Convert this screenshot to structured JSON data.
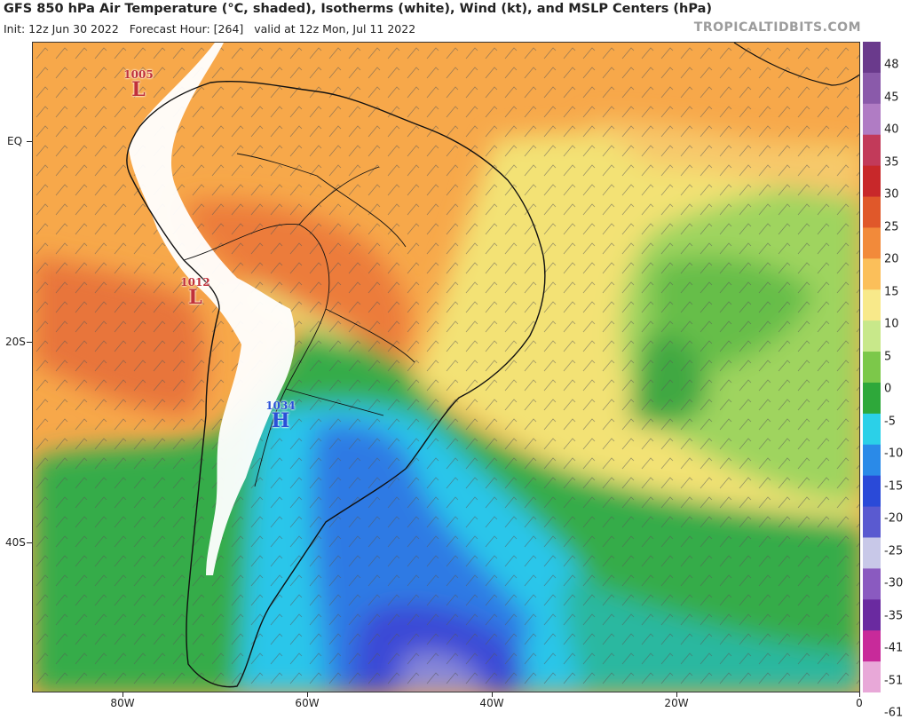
{
  "header": {
    "title": "GFS 850 hPa Air Temperature (°C, shaded), Isotherms (white), Wind (kt), and MSLP Centers (hPa)",
    "init": "Init: 12z Jun 30 2022",
    "forecast_hour": "Forecast Hour: [264]",
    "valid": "valid at 12z Mon, Jul 11 2022",
    "brand": "TROPICALTIDBITS.COM"
  },
  "colorbar": {
    "labels": [
      "48",
      "45",
      "40",
      "35",
      "30",
      "25",
      "20",
      "15",
      "10",
      "5",
      "0",
      "-5",
      "-10",
      "-15",
      "-20",
      "-25",
      "-30",
      "-35",
      "-41",
      "-51",
      "-61"
    ],
    "colors": [
      "#6a3a8c",
      "#8a5aaa",
      "#b07cc4",
      "#c23a5a",
      "#c8282a",
      "#e0582a",
      "#f28a3a",
      "#fbbf5a",
      "#f8e98a",
      "#c8e88a",
      "#7cc84a",
      "#2ea83a",
      "#2bd0e8",
      "#2a8ae8",
      "#2a4ad8",
      "#5a5ad0",
      "#c8c8e8",
      "#8a5ac0",
      "#6a2aa0",
      "#c82a9a",
      "#e8a8d8"
    ]
  },
  "axes": {
    "lat_labels": [
      "EQ",
      "20S",
      "40S"
    ],
    "lon_labels": [
      "80W",
      "60W",
      "40W",
      "20W",
      "0"
    ]
  },
  "pressure_centers": [
    {
      "value": "1005",
      "type": "L",
      "color": "#c0303a"
    },
    {
      "value": "1012",
      "type": "L",
      "color": "#c0303a"
    },
    {
      "value": "1034",
      "type": "H",
      "color": "#2a50d8"
    }
  ]
}
